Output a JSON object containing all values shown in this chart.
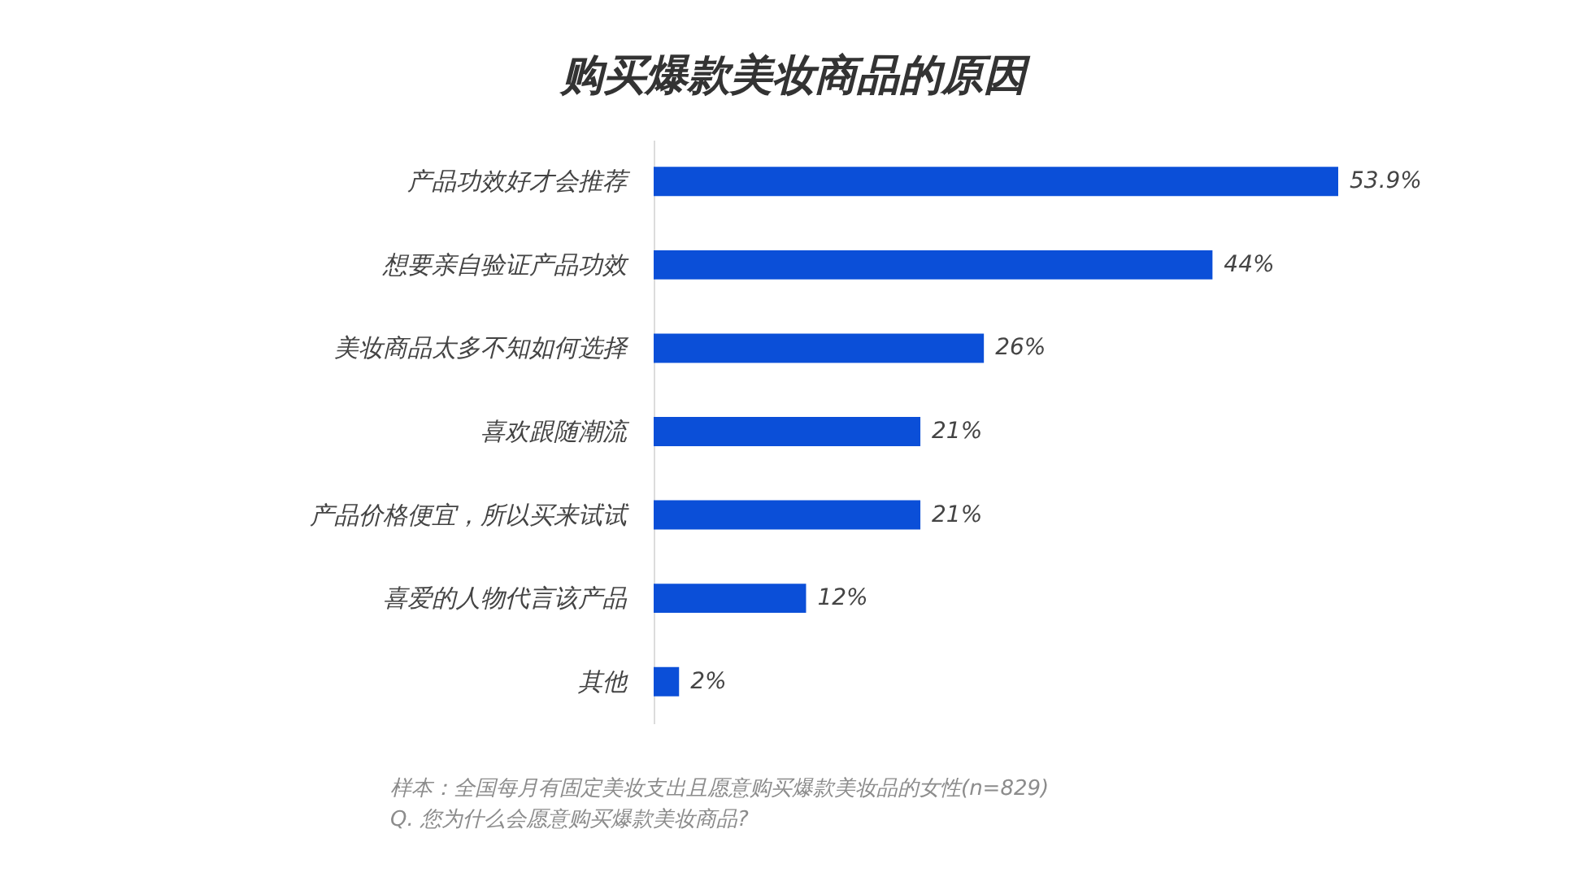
{
  "chart_data": {
    "type": "bar",
    "orientation": "horizontal",
    "title": "购买爆款美妆商品的原因",
    "categories": [
      "产品功效好才会推荐",
      "想要亲自验证产品功效",
      "美妆商品太多不知如何选择",
      "喜欢跟随潮流",
      "产品价格便宜，所以买来试试",
      "喜爱的人物代言该产品",
      "其他"
    ],
    "values": [
      53.9,
      44,
      26,
      21,
      21,
      12,
      2
    ],
    "value_labels": [
      "53.9%",
      "44%",
      "26%",
      "21%",
      "21%",
      "12%",
      "2%"
    ],
    "color": "#0b4fd8",
    "annotations": [
      "样本：全国每月有固定美妆支出且愿意购买爆款美妆品的女性(n=829)",
      "Q. 您为什么会愿意购买爆款美妆商品?"
    ]
  }
}
